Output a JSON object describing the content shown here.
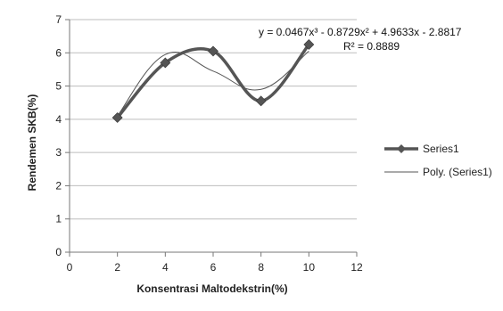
{
  "chart_data": {
    "type": "line",
    "x": [
      2,
      4,
      6,
      8,
      10
    ],
    "series": [
      {
        "name": "Series1",
        "values": [
          4.05,
          5.7,
          6.05,
          4.55,
          6.25
        ],
        "style": "smoothed line with diamond markers",
        "color": "#555555"
      },
      {
        "name": "Poly. (Series1)",
        "values": [
          4.1,
          5.95,
          5.45,
          4.9,
          6.05
        ],
        "style": "thin polynomial trendline",
        "color": "#555555"
      }
    ],
    "xlabel": "Konsentrasi Maltodekstrin(%)",
    "ylabel": "Rendemen SKB(%)",
    "xlim": [
      0,
      12
    ],
    "ylim": [
      0,
      7
    ],
    "x_ticks": [
      "0",
      "2",
      "4",
      "6",
      "8",
      "10",
      "12"
    ],
    "y_ticks": [
      "0",
      "1",
      "2",
      "3",
      "4",
      "5",
      "6",
      "7"
    ],
    "grid": "horizontal",
    "legend_position": "right",
    "annotations": {
      "equation": "y = 0.0467x³ - 0.8729x² + 4.9633x - 2.8817",
      "r_squared": "R² = 0.8889"
    }
  }
}
